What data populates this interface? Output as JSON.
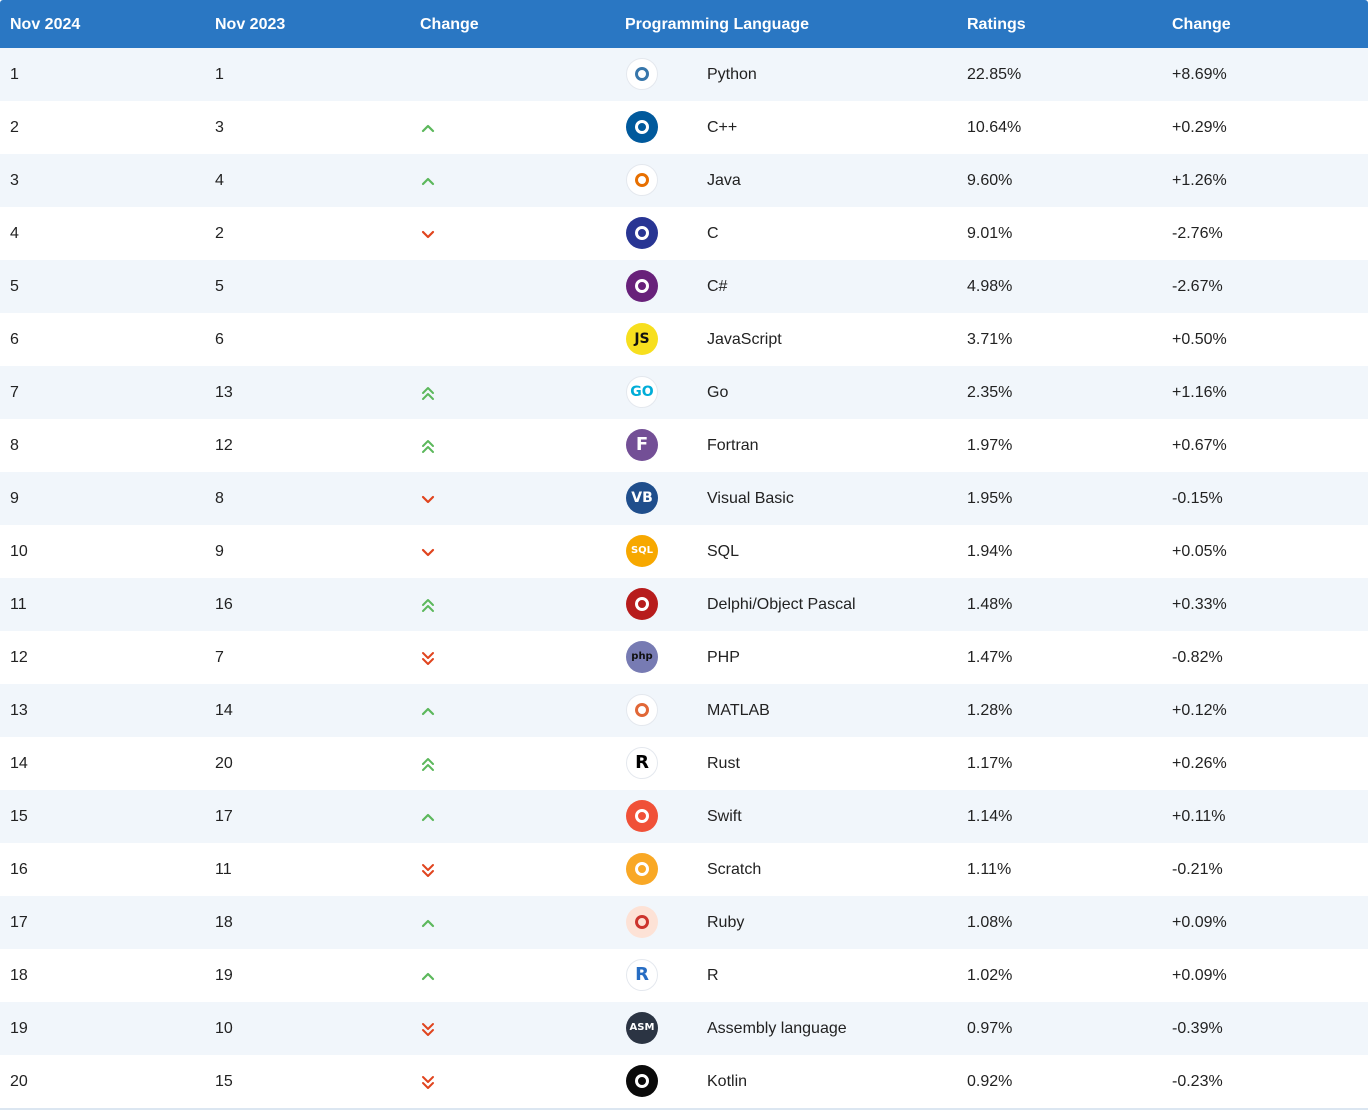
{
  "headers": [
    "Nov 2024",
    "Nov 2023",
    "Change",
    "Programming Language",
    "Ratings",
    "Change"
  ],
  "colors": {
    "header_bg": "#2a77c3",
    "up": "#5cb85c",
    "down": "#e0441e",
    "row_alt": "#f1f6fb"
  },
  "rows": [
    {
      "rank": "1",
      "prev": "1",
      "trend": "none",
      "icon": "python-logo-icon",
      "logo_text": "",
      "logo_bg": "#ffffff",
      "logo_fg": "#3776ab",
      "language": "Python",
      "rating": "22.85%",
      "change": "+8.69%"
    },
    {
      "rank": "2",
      "prev": "3",
      "trend": "up",
      "icon": "cpp-logo-icon",
      "logo_text": "",
      "logo_bg": "#00599c",
      "logo_fg": "#ffffff",
      "language": "C++",
      "rating": "10.64%",
      "change": "+0.29%"
    },
    {
      "rank": "3",
      "prev": "4",
      "trend": "up",
      "icon": "java-logo-icon",
      "logo_text": "",
      "logo_bg": "#ffffff",
      "logo_fg": "#e76f00",
      "language": "Java",
      "rating": "9.60%",
      "change": "+1.26%"
    },
    {
      "rank": "4",
      "prev": "2",
      "trend": "down",
      "icon": "c-logo-icon",
      "logo_text": "",
      "logo_bg": "#283593",
      "logo_fg": "#ffffff",
      "language": "C",
      "rating": "9.01%",
      "change": "-2.76%"
    },
    {
      "rank": "5",
      "prev": "5",
      "trend": "none",
      "icon": "csharp-logo-icon",
      "logo_text": "",
      "logo_bg": "#68217a",
      "logo_fg": "#ffffff",
      "language": "C#",
      "rating": "4.98%",
      "change": "-2.67%"
    },
    {
      "rank": "6",
      "prev": "6",
      "trend": "none",
      "icon": "javascript-logo-icon",
      "logo_text": "JS",
      "logo_bg": "#f7df1e",
      "logo_fg": "#111111",
      "language": "JavaScript",
      "rating": "3.71%",
      "change": "+0.50%"
    },
    {
      "rank": "7",
      "prev": "13",
      "trend": "up2",
      "icon": "go-logo-icon",
      "logo_text": "GO",
      "logo_bg": "#ffffff",
      "logo_fg": "#00add8",
      "language": "Go",
      "rating": "2.35%",
      "change": "+1.16%"
    },
    {
      "rank": "8",
      "prev": "12",
      "trend": "up2",
      "icon": "fortran-logo-icon",
      "logo_text": "F",
      "logo_bg": "#734f96",
      "logo_fg": "#ffffff",
      "language": "Fortran",
      "rating": "1.97%",
      "change": "+0.67%"
    },
    {
      "rank": "9",
      "prev": "8",
      "trend": "down",
      "icon": "visual-basic-logo-icon",
      "logo_text": "VB",
      "logo_bg": "#1f4e8c",
      "logo_fg": "#ffffff",
      "language": "Visual Basic",
      "rating": "1.95%",
      "change": "-0.15%"
    },
    {
      "rank": "10",
      "prev": "9",
      "trend": "down",
      "icon": "sql-logo-icon",
      "logo_text": "SQL",
      "logo_bg": "#f7a800",
      "logo_fg": "#ffffff",
      "language": "SQL",
      "rating": "1.94%",
      "change": "+0.05%"
    },
    {
      "rank": "11",
      "prev": "16",
      "trend": "up2",
      "icon": "delphi-logo-icon",
      "logo_text": "",
      "logo_bg": "#b71c1c",
      "logo_fg": "#ffffff",
      "language": "Delphi/Object Pascal",
      "rating": "1.48%",
      "change": "+0.33%"
    },
    {
      "rank": "12",
      "prev": "7",
      "trend": "down2",
      "icon": "php-logo-icon",
      "logo_text": "php",
      "logo_bg": "#777bb3",
      "logo_fg": "#111111",
      "language": "PHP",
      "rating": "1.47%",
      "change": "-0.82%"
    },
    {
      "rank": "13",
      "prev": "14",
      "trend": "up",
      "icon": "matlab-logo-icon",
      "logo_text": "",
      "logo_bg": "#ffffff",
      "logo_fg": "#e16737",
      "language": "MATLAB",
      "rating": "1.28%",
      "change": "+0.12%"
    },
    {
      "rank": "14",
      "prev": "20",
      "trend": "up2",
      "icon": "rust-logo-icon",
      "logo_text": "R",
      "logo_bg": "#ffffff",
      "logo_fg": "#000000",
      "language": "Rust",
      "rating": "1.17%",
      "change": "+0.26%"
    },
    {
      "rank": "15",
      "prev": "17",
      "trend": "up",
      "icon": "swift-logo-icon",
      "logo_text": "",
      "logo_bg": "#f05138",
      "logo_fg": "#ffffff",
      "language": "Swift",
      "rating": "1.14%",
      "change": "+0.11%"
    },
    {
      "rank": "16",
      "prev": "11",
      "trend": "down2",
      "icon": "scratch-logo-icon",
      "logo_text": "",
      "logo_bg": "#f9a825",
      "logo_fg": "#ffffff",
      "language": "Scratch",
      "rating": "1.11%",
      "change": "-0.21%"
    },
    {
      "rank": "17",
      "prev": "18",
      "trend": "up",
      "icon": "ruby-logo-icon",
      "logo_text": "",
      "logo_bg": "#fde2d6",
      "logo_fg": "#cc342d",
      "language": "Ruby",
      "rating": "1.08%",
      "change": "+0.09%"
    },
    {
      "rank": "18",
      "prev": "19",
      "trend": "up",
      "icon": "r-logo-icon",
      "logo_text": "R",
      "logo_bg": "#ffffff",
      "logo_fg": "#276dc3",
      "language": "R",
      "rating": "1.02%",
      "change": "+0.09%"
    },
    {
      "rank": "19",
      "prev": "10",
      "trend": "down2",
      "icon": "assembly-logo-icon",
      "logo_text": "ASM",
      "logo_bg": "#2b3443",
      "logo_fg": "#ffffff",
      "language": "Assembly language",
      "rating": "0.97%",
      "change": "-0.39%"
    },
    {
      "rank": "20",
      "prev": "15",
      "trend": "down2",
      "icon": "kotlin-logo-icon",
      "logo_text": "",
      "logo_bg": "#0a0a0a",
      "logo_fg": "#ffffff",
      "language": "Kotlin",
      "rating": "0.92%",
      "change": "-0.23%"
    }
  ]
}
